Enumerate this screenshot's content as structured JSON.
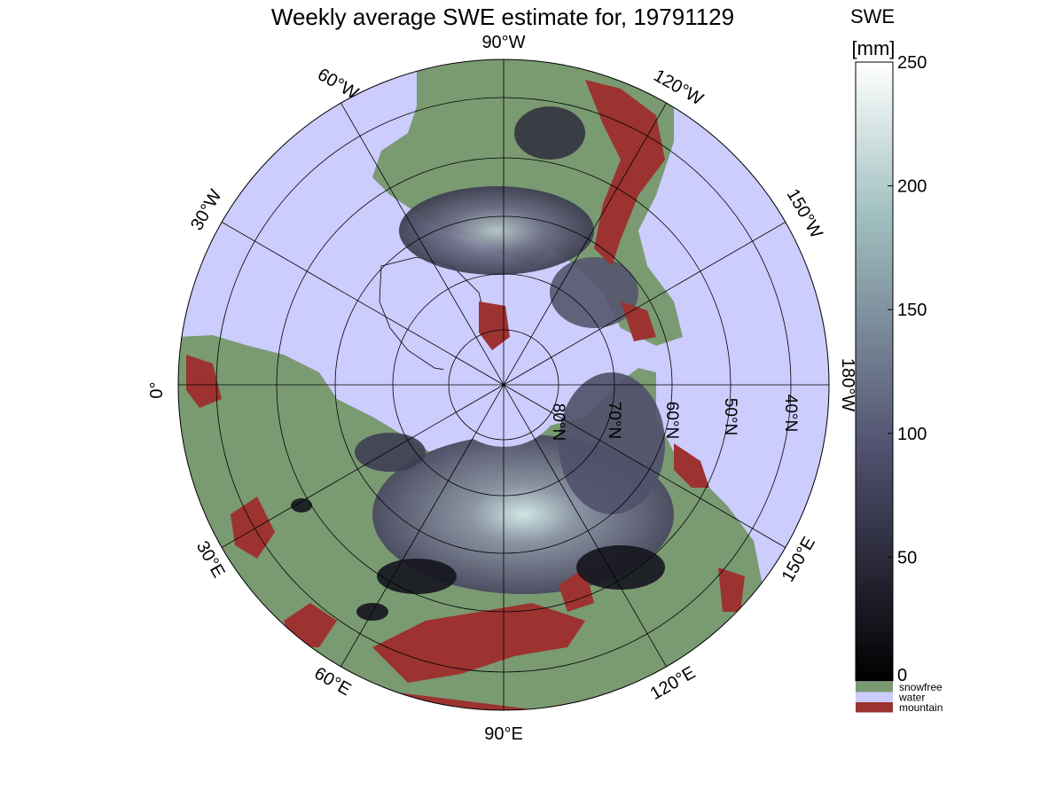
{
  "title": "Weekly average SWE estimate for, 19791129",
  "colorbar": {
    "label_line1": "SWE",
    "label_line2": "[mm]",
    "ticks": [
      "0",
      "50",
      "100",
      "150",
      "200",
      "250"
    ],
    "min": 0,
    "max": 250,
    "colormap": "bone",
    "categories": [
      {
        "label": "snowfree",
        "color": "#7a9a72"
      },
      {
        "label": "water",
        "color": "#ccccfd"
      },
      {
        "label": "mountain",
        "color": "#9c3330"
      }
    ]
  },
  "map": {
    "projection": "north polar stereographic",
    "longitude_labels": {
      "lon_90W": "90°W",
      "lon_60W": "60°W",
      "lon_30W": "30°W",
      "lon_0": "0°",
      "lon_30E": "30°E",
      "lon_60E": "60°E",
      "lon_90E": "90°E",
      "lon_120E": "120°E",
      "lon_150E": "150°E",
      "lon_180W": "180°W",
      "lon_150W": "150°W",
      "lon_120W": "120°W"
    },
    "latitude_labels": {
      "lat_80N": "80°N",
      "lat_70N": "70°N",
      "lat_60N": "60°N",
      "lat_50N": "50°N",
      "lat_40N": "40°N"
    },
    "colors": {
      "water": "#ccccfd",
      "snowfree": "#7a9a72",
      "mountain": "#9c3330",
      "snow_low": "#1b1b26",
      "snow_mid": "#5e5e78",
      "snow_high": "#d4ecea"
    }
  }
}
